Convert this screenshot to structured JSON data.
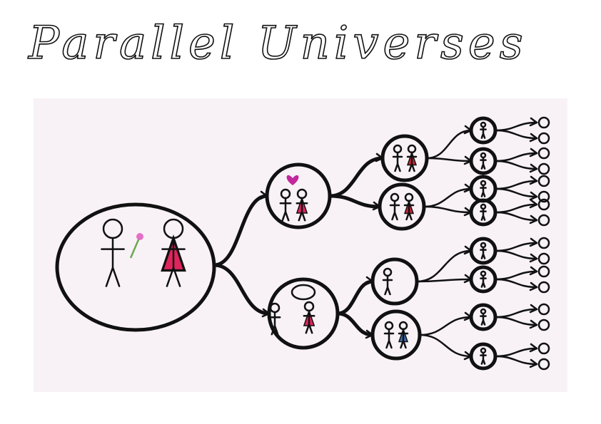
{
  "title": "Parallel Universes"
}
